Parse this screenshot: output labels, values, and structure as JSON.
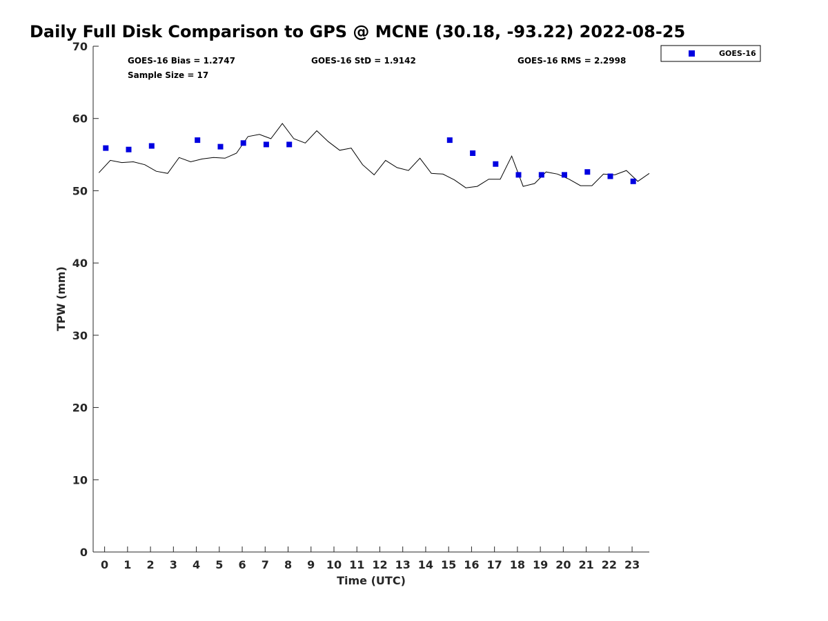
{
  "chart_data": {
    "type": "scatter",
    "title": "Daily Full Disk Comparison to GPS @ MCNE (30.18, -93.22) 2022-08-25",
    "xlabel": "Time (UTC)",
    "ylabel": "TPW (mm)",
    "xlim": [
      -0.5,
      23.75
    ],
    "ylim": [
      0,
      70
    ],
    "xticks": [
      0,
      1,
      2,
      3,
      4,
      5,
      6,
      7,
      8,
      9,
      10,
      11,
      12,
      13,
      14,
      15,
      16,
      17,
      18,
      19,
      20,
      21,
      22,
      23
    ],
    "yticks": [
      0,
      10,
      20,
      30,
      40,
      50,
      60,
      70
    ],
    "grid": false,
    "legend_position": "top-right",
    "stats": {
      "bias": "GOES-16 Bias = 1.2747",
      "std": "GOES-16 StD = 1.9142",
      "rms": "GOES-16 RMS = 2.2998",
      "sample": "Sample Size = 17"
    },
    "series": [
      {
        "name": "GOES-16",
        "kind": "scatter",
        "color": "#0000e0",
        "marker": "square",
        "points": [
          [
            0.05,
            55.9
          ],
          [
            1.05,
            55.7
          ],
          [
            2.05,
            56.2
          ],
          [
            4.05,
            57.0
          ],
          [
            5.05,
            56.1
          ],
          [
            6.05,
            56.6
          ],
          [
            7.05,
            56.4
          ],
          [
            8.05,
            56.4
          ],
          [
            15.05,
            57.0
          ],
          [
            16.05,
            55.2
          ],
          [
            17.05,
            53.7
          ],
          [
            18.05,
            52.2
          ],
          [
            19.05,
            52.2
          ],
          [
            20.05,
            52.2
          ],
          [
            21.05,
            52.6
          ],
          [
            22.05,
            52.0
          ],
          [
            23.05,
            51.3
          ]
        ]
      },
      {
        "kind": "line",
        "color": "#000000",
        "points": [
          [
            -0.25,
            52.5
          ],
          [
            0.25,
            54.2
          ],
          [
            0.75,
            53.9
          ],
          [
            1.25,
            54.0
          ],
          [
            1.75,
            53.6
          ],
          [
            2.25,
            52.7
          ],
          [
            2.75,
            52.4
          ],
          [
            3.25,
            54.6
          ],
          [
            3.75,
            54.0
          ],
          [
            4.25,
            54.4
          ],
          [
            4.75,
            54.6
          ],
          [
            5.25,
            54.5
          ],
          [
            5.75,
            55.2
          ],
          [
            6.25,
            57.5
          ],
          [
            6.75,
            57.8
          ],
          [
            7.25,
            57.2
          ],
          [
            7.75,
            59.3
          ],
          [
            8.25,
            57.2
          ],
          [
            8.75,
            56.6
          ],
          [
            9.25,
            58.3
          ],
          [
            9.75,
            56.8
          ],
          [
            10.25,
            55.6
          ],
          [
            10.75,
            55.9
          ],
          [
            11.25,
            53.6
          ],
          [
            11.75,
            52.2
          ],
          [
            12.25,
            54.2
          ],
          [
            12.75,
            53.2
          ],
          [
            13.25,
            52.8
          ],
          [
            13.75,
            54.5
          ],
          [
            14.25,
            52.4
          ],
          [
            14.75,
            52.3
          ],
          [
            15.25,
            51.5
          ],
          [
            15.75,
            50.4
          ],
          [
            16.25,
            50.6
          ],
          [
            16.75,
            51.6
          ],
          [
            17.25,
            51.6
          ],
          [
            17.75,
            54.8
          ],
          [
            18.25,
            50.6
          ],
          [
            18.75,
            51.0
          ],
          [
            19.25,
            52.6
          ],
          [
            19.75,
            52.3
          ],
          [
            20.25,
            51.6
          ],
          [
            20.75,
            50.7
          ],
          [
            21.25,
            50.7
          ],
          [
            21.75,
            52.3
          ],
          [
            22.25,
            52.2
          ],
          [
            22.75,
            52.8
          ],
          [
            23.25,
            51.3
          ],
          [
            23.75,
            52.4
          ]
        ]
      }
    ]
  }
}
